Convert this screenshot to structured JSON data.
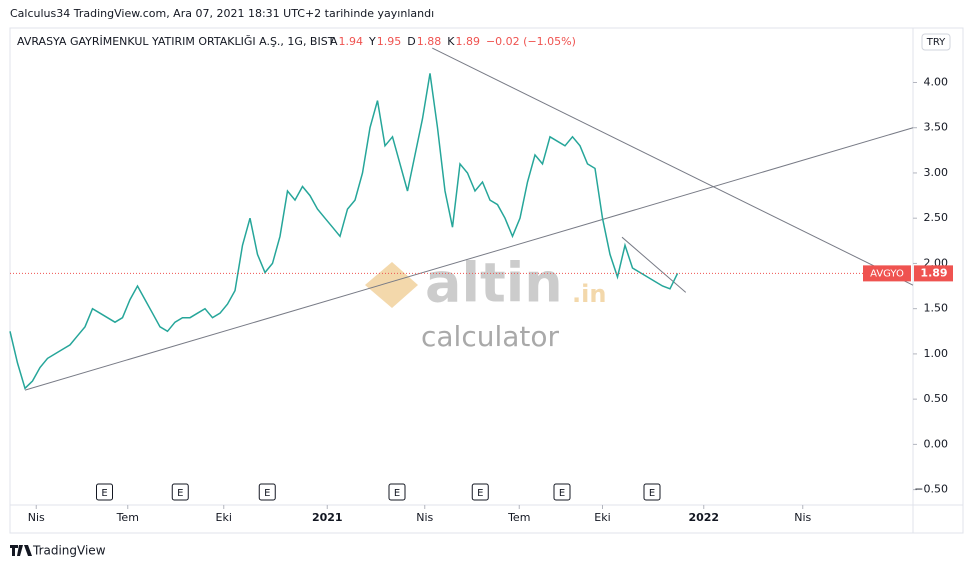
{
  "header": {
    "publisher": "Calculus34 TradingView.com, Ara 07, 2021 18:31 UTC+2 tarihinde yayınlandı"
  },
  "footer": {
    "brand": "TradingView"
  },
  "watermark": {
    "logo": "altin",
    "domain": ".in",
    "sub": "calculator"
  },
  "chart_data": {
    "type": "line",
    "symbol": "AVRASYA GAYRİMENKUL YATIRIM ORTAKLIĞI A.Ş., 1G, BIST",
    "ohlc": [
      {
        "label": "A",
        "value": 1.94
      },
      {
        "label": "Y",
        "value": 1.95
      },
      {
        "label": "D",
        "value": 1.88
      },
      {
        "label": "K",
        "value": 1.89
      }
    ],
    "change": "−0.02 (−1.05%)",
    "currency": "TRY",
    "ticker": "AVGYO",
    "last_label": "1.89",
    "color": "#26a69a",
    "values": [
      1.25,
      0.9,
      0.62,
      0.7,
      0.85,
      0.95,
      1.0,
      1.05,
      1.1,
      1.2,
      1.3,
      1.5,
      1.45,
      1.4,
      1.35,
      1.4,
      1.6,
      1.75,
      1.6,
      1.45,
      1.3,
      1.25,
      1.35,
      1.4,
      1.4,
      1.45,
      1.5,
      1.4,
      1.45,
      1.55,
      1.7,
      2.2,
      2.5,
      2.1,
      1.9,
      2.0,
      2.3,
      2.8,
      2.7,
      2.85,
      2.75,
      2.6,
      2.5,
      2.4,
      2.3,
      2.6,
      2.7,
      3.0,
      3.5,
      3.8,
      3.3,
      3.4,
      3.1,
      2.8,
      3.2,
      3.6,
      4.1,
      3.5,
      2.8,
      2.4,
      3.1,
      3.0,
      2.8,
      2.9,
      2.7,
      2.65,
      2.5,
      2.3,
      2.5,
      2.9,
      3.2,
      3.1,
      3.4,
      3.35,
      3.3,
      3.4,
      3.3,
      3.1,
      3.05,
      2.5,
      2.1,
      1.85,
      2.2,
      1.95,
      1.9,
      1.85,
      1.8,
      1.75,
      1.72,
      1.89
    ],
    "xlim": [
      0,
      120.4
    ],
    "xticks": [
      {
        "value": 3.5,
        "label": "Nis"
      },
      {
        "value": 15.7,
        "label": "Tem"
      },
      {
        "value": 28.5,
        "label": "Eki"
      },
      {
        "value": 42.3,
        "label": "2021"
      },
      {
        "value": 55.3,
        "label": "Nis"
      },
      {
        "value": 67.9,
        "label": "Tem"
      },
      {
        "value": 79,
        "label": "Eki"
      },
      {
        "value": 92.5,
        "label": "2022"
      },
      {
        "value": 105.7,
        "label": "Nis"
      }
    ],
    "ylim": [
      -0.67,
      4.58
    ],
    "yticks": [
      {
        "value": -0.5,
        "label": "−0.50"
      },
      {
        "value": 0,
        "label": "0.00"
      },
      {
        "value": 0.5,
        "label": "0.50"
      },
      {
        "value": 1,
        "label": "1.00"
      },
      {
        "value": 1.5,
        "label": "1.50"
      },
      {
        "value": 2,
        "label": "2.00"
      },
      {
        "value": 2.5,
        "label": "2.50"
      },
      {
        "value": 3,
        "label": "3.00"
      },
      {
        "value": 3.5,
        "label": "3.50"
      },
      {
        "value": 4,
        "label": "4.00"
      }
    ],
    "trendlines": [
      {
        "x": [
          2,
          120.4
        ],
        "y": [
          0.6,
          3.5
        ]
      },
      {
        "x": [
          56.3,
          120.4
        ],
        "y": [
          4.38,
          1.76
        ]
      },
      {
        "x": [
          81.6,
          90.1
        ],
        "y": [
          2.29,
          1.68
        ]
      }
    ],
    "events": [
      {
        "x": 12.6,
        "label": "E"
      },
      {
        "x": 22.7,
        "label": "E"
      },
      {
        "x": 34.3,
        "label": "E"
      },
      {
        "x": 51.6,
        "label": "E"
      },
      {
        "x": 62.7,
        "label": "E"
      },
      {
        "x": 73.6,
        "label": "E"
      },
      {
        "x": 85.6,
        "label": "E"
      }
    ]
  }
}
